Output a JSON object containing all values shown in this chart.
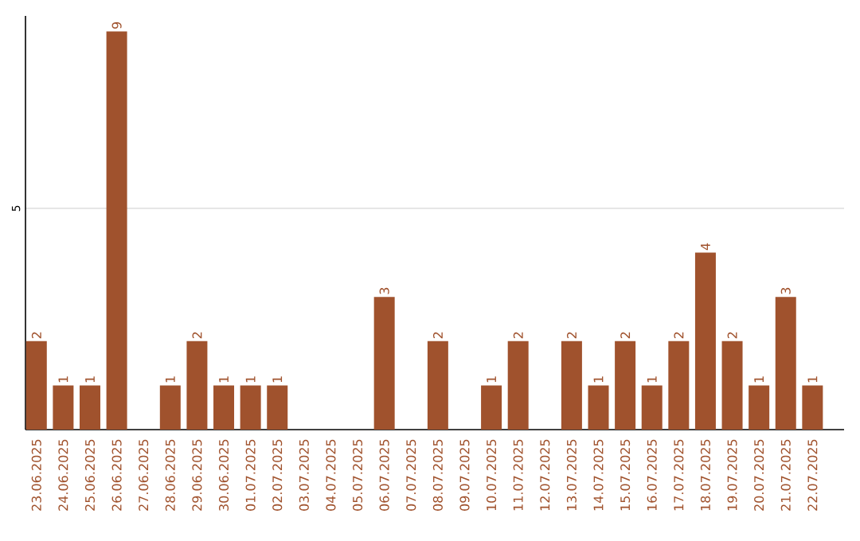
{
  "chart_data": {
    "type": "bar",
    "categories": [
      "23.06.2025",
      "24.06.2025",
      "25.06.2025",
      "26.06.2025",
      "27.06.2025",
      "28.06.2025",
      "29.06.2025",
      "30.06.2025",
      "01.07.2025",
      "02.07.2025",
      "03.07.2025",
      "04.07.2025",
      "05.07.2025",
      "06.07.2025",
      "07.07.2025",
      "08.07.2025",
      "09.07.2025",
      "10.07.2025",
      "11.07.2025",
      "12.07.2025",
      "13.07.2025",
      "14.07.2025",
      "15.07.2025",
      "16.07.2025",
      "17.07.2025",
      "18.07.2025",
      "19.07.2025",
      "20.07.2025",
      "21.07.2025",
      "22.07.2025"
    ],
    "values": [
      2,
      1,
      1,
      9,
      null,
      1,
      2,
      1,
      1,
      1,
      null,
      null,
      null,
      3,
      null,
      2,
      null,
      1,
      2,
      null,
      2,
      1,
      2,
      1,
      2,
      4,
      2,
      1,
      3,
      1
    ],
    "color": "#a0522d",
    "ylim": [
      0,
      9.35
    ],
    "yticks": [
      5
    ],
    "grid": "y",
    "data_labels": true
  }
}
